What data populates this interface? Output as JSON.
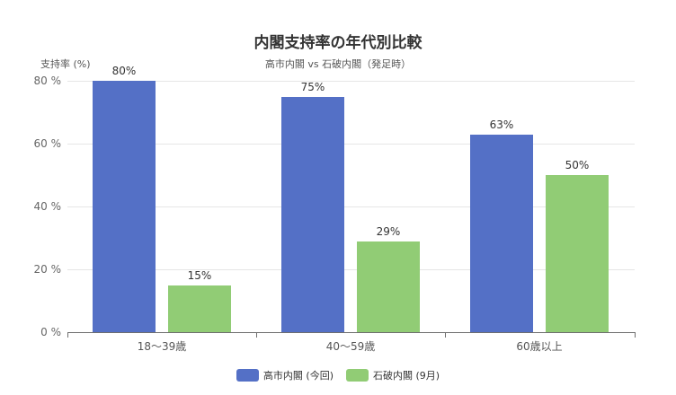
{
  "chart_data": {
    "type": "bar",
    "title": "内閣支持率の年代別比較",
    "subtitle": "高市内閣 vs 石破内閣（発足時）",
    "xlabel": "",
    "ylabel": "支持率 (%)",
    "ylim": [
      0,
      80
    ],
    "yticks": [
      "0 %",
      "20 %",
      "40 %",
      "60 %",
      "80 %"
    ],
    "grid": true,
    "legend_position": "bottom",
    "categories": [
      "18〜39歳",
      "40〜59歳",
      "60歳以上"
    ],
    "series": [
      {
        "name": "高市内閣 (今回)",
        "color": "#5470c6",
        "values": [
          80,
          75,
          63
        ],
        "labels": [
          "80%",
          "75%",
          "63%"
        ]
      },
      {
        "name": "石破内閣 (9月)",
        "color": "#91cc75",
        "values": [
          15,
          29,
          50
        ],
        "labels": [
          "15%",
          "29%",
          "50%"
        ]
      }
    ]
  }
}
